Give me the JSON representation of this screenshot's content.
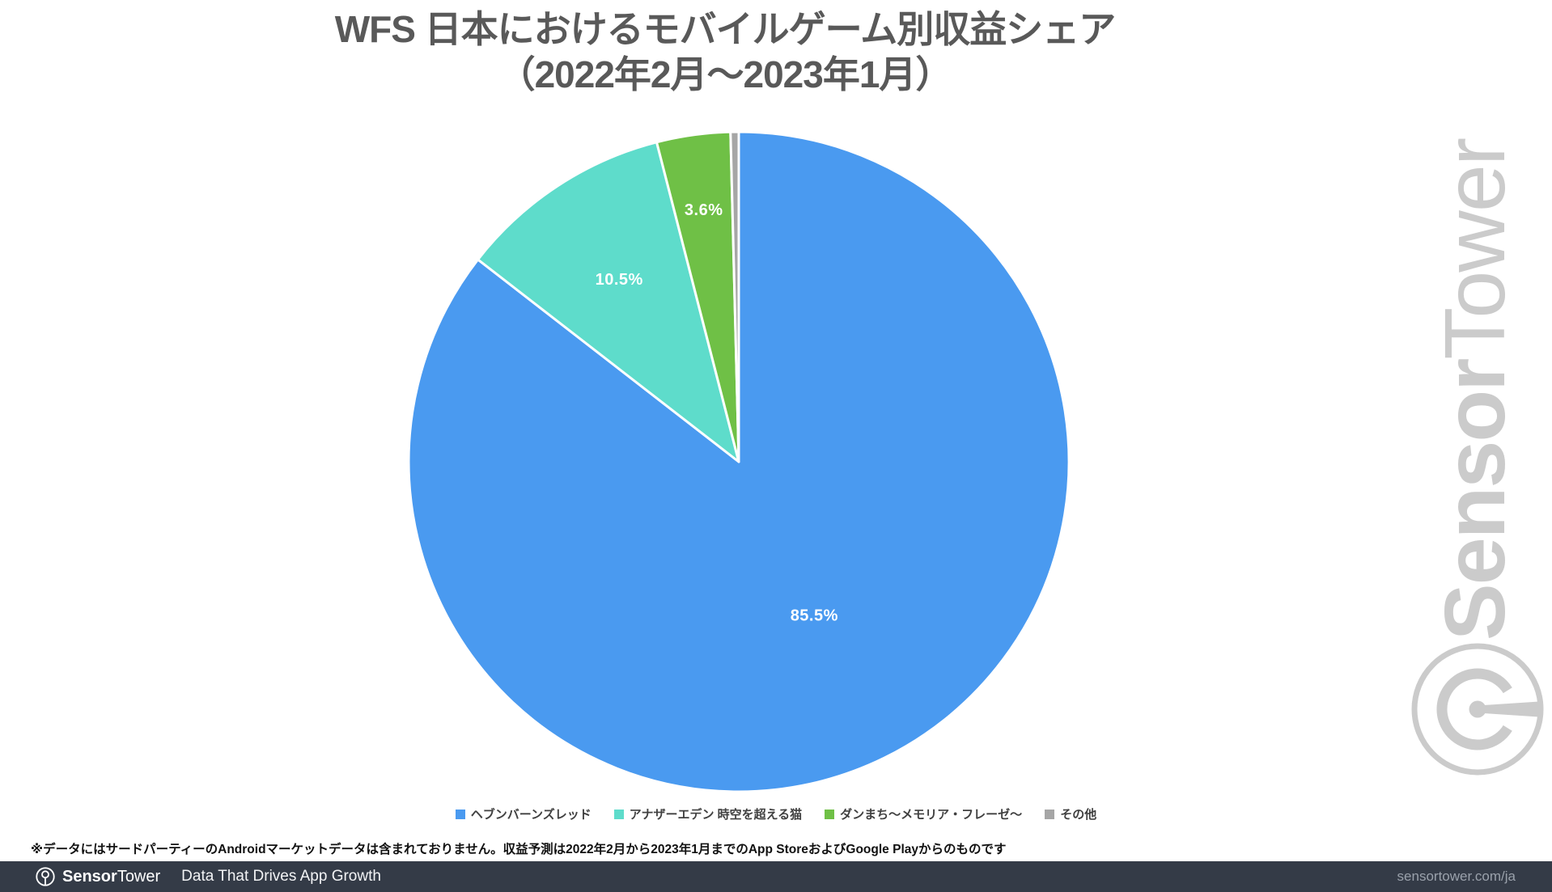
{
  "title": {
    "line1": "WFS 日本におけるモバイルゲーム別収益シェア",
    "line2": "（2022年2月～2023年1月）"
  },
  "chart_data": {
    "type": "pie",
    "title": "WFS 日本におけるモバイルゲーム別収益シェア（2022年2月～2023年1月）",
    "unit": "percent",
    "start_angle_deg": 0,
    "direction": "clockwise",
    "legend_position": "bottom",
    "slices": [
      {
        "label": "ヘブンバーンズレッド",
        "value": 85.5,
        "data_label": "85.5%",
        "color": "#4A9AF0",
        "label_radius": 0.52
      },
      {
        "label": "アナザーエデン 時空を超える猫",
        "value": 10.5,
        "data_label": "10.5%",
        "color": "#5EDCCB",
        "label_radius": 0.66
      },
      {
        "label": "ダンまち～メモリア・フレーゼ～",
        "value": 3.6,
        "data_label": "3.6%",
        "color": "#6FC046",
        "label_radius": 0.77
      },
      {
        "label": "その他",
        "value": 0.4,
        "data_label": "",
        "color": "#A6A6A6",
        "label_radius": 0
      }
    ]
  },
  "footnote": "※データにはサードパーティーのAndroidマーケットデータは含まれておりません。収益予測は2022年2月から2023年1月までのApp StoreおよびGoogle Playからのものです",
  "watermark": {
    "brand_bold": "Sensor",
    "brand_regular": "Tower"
  },
  "footer": {
    "brand_bold": "Sensor",
    "brand_regular": "Tower",
    "tagline": "Data That Drives App Growth",
    "url": "sensortower.com/ja"
  },
  "colors": {
    "title": "#595959",
    "footer_bg": "#343B47",
    "watermark": "#CBCBCB",
    "slice_border": "#FFFFFF"
  }
}
